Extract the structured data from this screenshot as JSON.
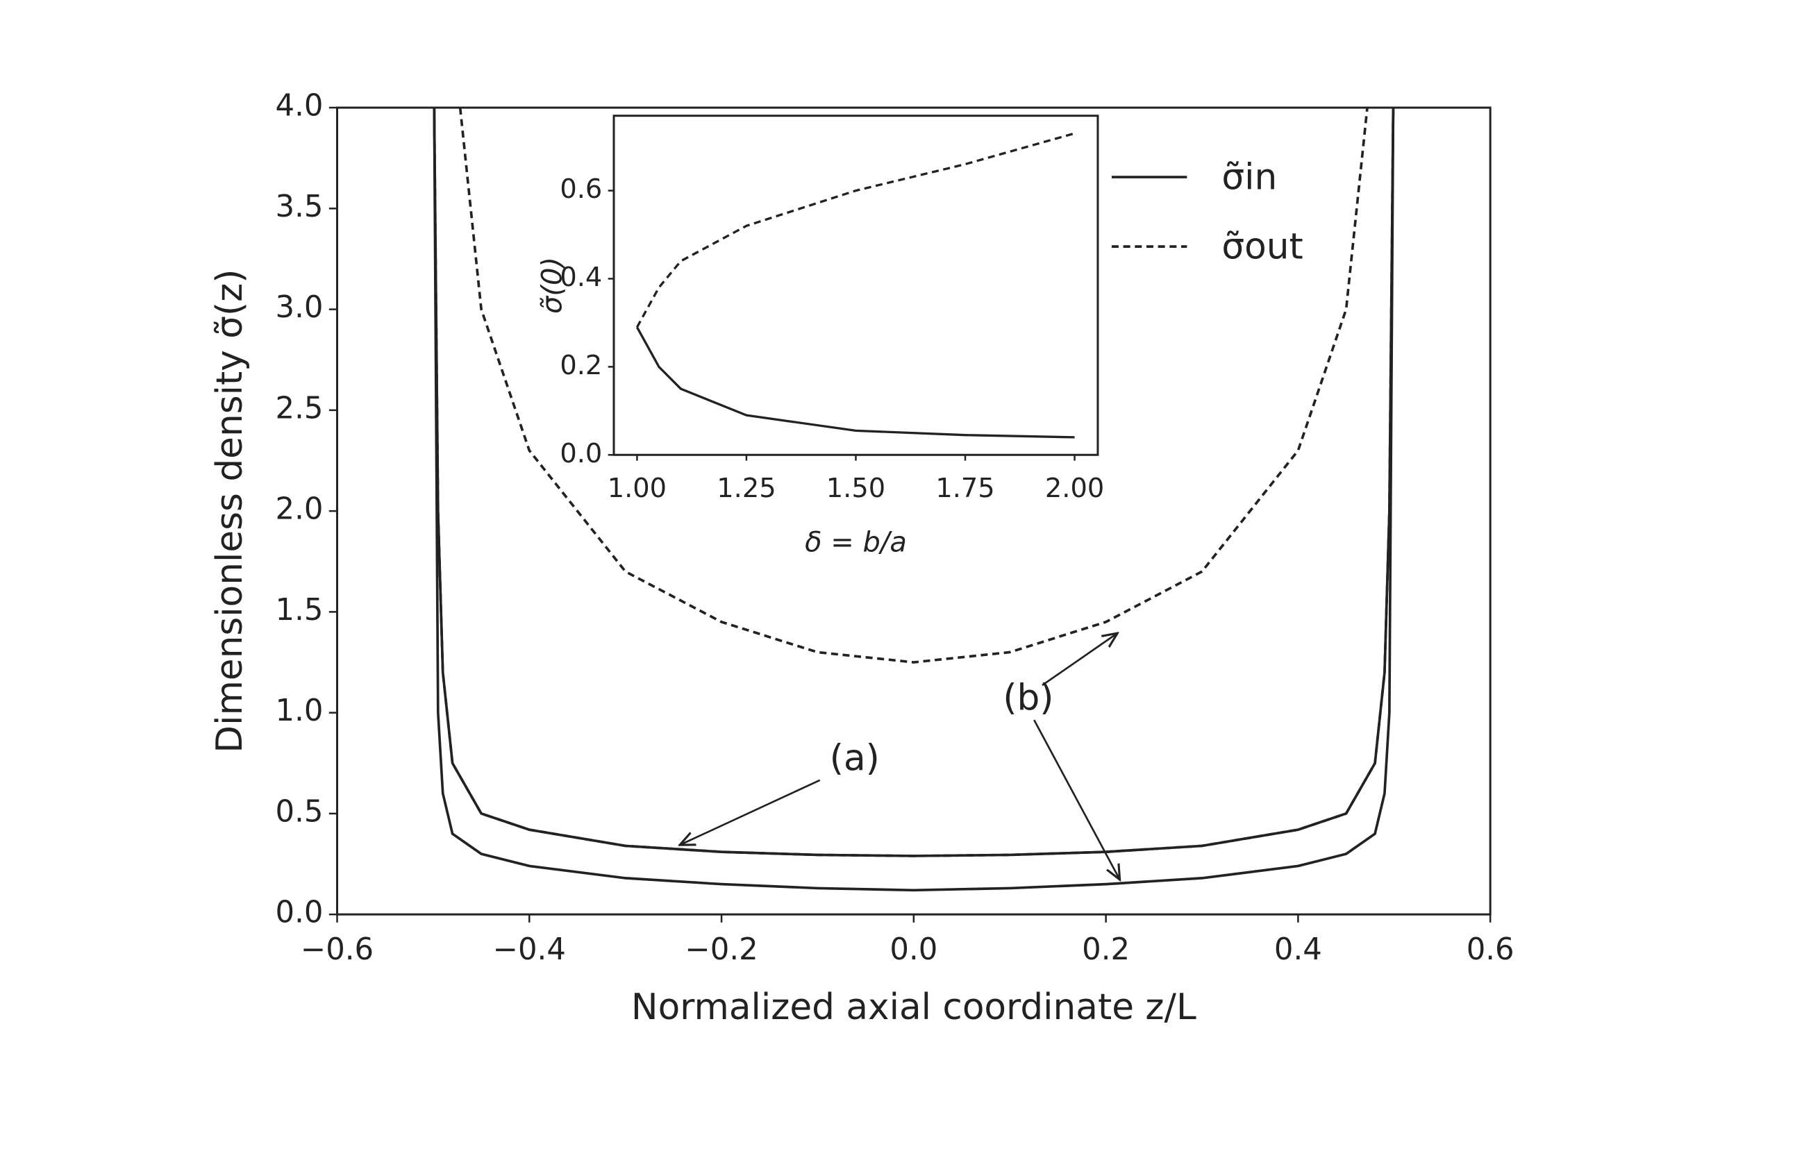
{
  "chart_data": [
    {
      "type": "line",
      "xlabel": "Normalized axial coordinate z/L",
      "ylabel": "Dimensionless density σ̃(z)",
      "xlim": [
        -0.6,
        0.6
      ],
      "xticks": [
        {
          "value": -0.6,
          "label": "−0.6"
        },
        {
          "value": -0.4,
          "label": "−0.4"
        },
        {
          "value": -0.2,
          "label": "−0.2"
        },
        {
          "value": 0,
          "label": "0.0"
        },
        {
          "value": 0.2,
          "label": "0.2"
        },
        {
          "value": 0.4,
          "label": "0.4"
        },
        {
          "value": 0.6,
          "label": "0.6"
        }
      ],
      "ylim": [
        0,
        4
      ],
      "yticks": [
        {
          "value": 0,
          "label": "0.0"
        },
        {
          "value": 0.5,
          "label": "0.5"
        },
        {
          "value": 1,
          "label": "1.0"
        },
        {
          "value": 1.5,
          "label": "1.5"
        },
        {
          "value": 2,
          "label": "2.0"
        },
        {
          "value": 2.5,
          "label": "2.5"
        },
        {
          "value": 3,
          "label": "3.0"
        },
        {
          "value": 3.5,
          "label": "3.5"
        },
        {
          "value": 4,
          "label": "4.0"
        }
      ],
      "annotations": [
        "(a)",
        "(b)"
      ],
      "series": [
        {
          "name": "σ̃in",
          "color": "#222222",
          "dash": "solid",
          "x": [
            -0.499,
            -0.495,
            -0.49,
            -0.48,
            -0.45,
            -0.4,
            -0.3,
            -0.2,
            -0.1,
            0,
            0.1,
            0.2,
            0.3,
            0.4,
            0.45,
            0.48,
            0.49,
            0.495,
            0.499
          ],
          "values": [
            4.0,
            2.0,
            1.2,
            0.75,
            0.5,
            0.42,
            0.34,
            0.31,
            0.295,
            0.29,
            0.295,
            0.31,
            0.34,
            0.42,
            0.5,
            0.75,
            1.2,
            2.0,
            4.0
          ]
        },
        {
          "name": "σ̃out",
          "color": "#222222",
          "dash": "dashed",
          "x": [
            -0.499,
            -0.495,
            -0.49,
            -0.48,
            -0.45,
            -0.4,
            -0.3,
            -0.2,
            -0.1,
            0,
            0.1,
            0.2,
            0.3,
            0.4,
            0.45,
            0.48,
            0.49,
            0.495,
            0.499
          ],
          "values": [
            4.0,
            2.0,
            1.2,
            0.75,
            0.5,
            0.42,
            0.34,
            0.31,
            0.295,
            0.29,
            0.295,
            0.31,
            0.34,
            0.42,
            0.5,
            0.75,
            1.2,
            2.0,
            4.0
          ]
        },
        {
          "color": "#222222",
          "dash": "solid",
          "x": [
            -0.499,
            -0.495,
            -0.49,
            -0.48,
            -0.45,
            -0.4,
            -0.3,
            -0.2,
            -0.1,
            0,
            0.1,
            0.2,
            0.3,
            0.4,
            0.45,
            0.48,
            0.49,
            0.495,
            0.499
          ],
          "values": [
            4.0,
            1.0,
            0.6,
            0.4,
            0.3,
            0.24,
            0.18,
            0.15,
            0.13,
            0.12,
            0.13,
            0.15,
            0.18,
            0.24,
            0.3,
            0.4,
            0.6,
            1.0,
            4.0
          ]
        },
        {
          "color": "#222222",
          "dash": "dashed",
          "x": [
            -0.472,
            -0.45,
            -0.4,
            -0.3,
            -0.2,
            -0.1,
            0,
            0.1,
            0.2,
            0.3,
            0.4,
            0.45,
            0.472
          ],
          "values": [
            4.0,
            3.0,
            2.3,
            1.7,
            1.45,
            1.3,
            1.25,
            1.3,
            1.45,
            1.7,
            2.3,
            3.0,
            4.0
          ]
        }
      ]
    },
    {
      "type": "line",
      "xlabel": "δ = b/a",
      "ylabel": "σ̃(0)",
      "xlim": [
        0.947,
        2.053
      ],
      "xticks": [
        {
          "value": 1,
          "label": "1.00"
        },
        {
          "value": 1.25,
          "label": "1.25"
        },
        {
          "value": 1.5,
          "label": "1.50"
        },
        {
          "value": 1.75,
          "label": "1.75"
        },
        {
          "value": 2,
          "label": "2.00"
        }
      ],
      "ylim": [
        0,
        0.77
      ],
      "yticks": [
        {
          "value": 0,
          "label": "0.0"
        },
        {
          "value": 0.2,
          "label": "0.2"
        },
        {
          "value": 0.4,
          "label": "0.4"
        },
        {
          "value": 0.6,
          "label": "0.6"
        }
      ],
      "series": [
        {
          "color": "#222222",
          "dash": "solid",
          "x": [
            1.0,
            1.05,
            1.1,
            1.25,
            1.5,
            1.75,
            2.0
          ],
          "values": [
            0.29,
            0.2,
            0.15,
            0.09,
            0.055,
            0.045,
            0.04
          ]
        },
        {
          "color": "#222222",
          "dash": "dashed",
          "x": [
            1.0,
            1.05,
            1.1,
            1.25,
            1.5,
            1.75,
            2.0
          ],
          "values": [
            0.29,
            0.38,
            0.44,
            0.52,
            0.6,
            0.66,
            0.73
          ]
        }
      ]
    }
  ]
}
